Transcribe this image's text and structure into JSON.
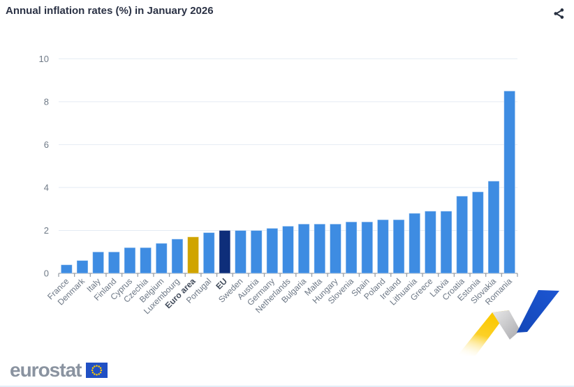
{
  "header": {
    "title": "Annual inflation rates (%) in January 2026",
    "share_icon": "share-nodes-icon"
  },
  "chart_data": {
    "type": "bar",
    "title": "Annual inflation rates (%) in January 2026",
    "xlabel": "",
    "ylabel": "",
    "ylim": [
      0,
      10
    ],
    "yticks": [
      0,
      2,
      4,
      6,
      8,
      10
    ],
    "grid": true,
    "legend": "none",
    "categories": [
      "France",
      "Denmark",
      "Italy",
      "Finland",
      "Cyprus",
      "Czechia",
      "Belgium",
      "Luxembourg",
      "Euro area",
      "Portugal",
      "EU",
      "Sweden",
      "Austria",
      "Germany",
      "Netherlands",
      "Bulgaria",
      "Malta",
      "Hungary",
      "Slovenia",
      "Spain",
      "Poland",
      "Ireland",
      "Lithuania",
      "Greece",
      "Latvia",
      "Croatia",
      "Estonia",
      "Slovakia",
      "Romania"
    ],
    "values": [
      0.4,
      0.6,
      1.0,
      1.0,
      1.2,
      1.2,
      1.4,
      1.6,
      1.7,
      1.9,
      2.0,
      2.0,
      2.0,
      2.1,
      2.2,
      2.3,
      2.3,
      2.3,
      2.4,
      2.4,
      2.5,
      2.5,
      2.8,
      2.9,
      2.9,
      3.6,
      3.8,
      4.3,
      8.5
    ],
    "default_bar_color": "#3e8ce2",
    "highlight_colors": {
      "Euro area": "#d0a400",
      "EU": "#0e2e7a"
    },
    "bold_categories": [
      "Euro area",
      "EU"
    ],
    "gridline_color": "#e4ebf3",
    "axis_line_color": "#9aa1a9",
    "tick_label_color": "#6f7a87",
    "bold_label_color": "#424c5c"
  },
  "footer": {
    "logo_text": "eurostat"
  }
}
